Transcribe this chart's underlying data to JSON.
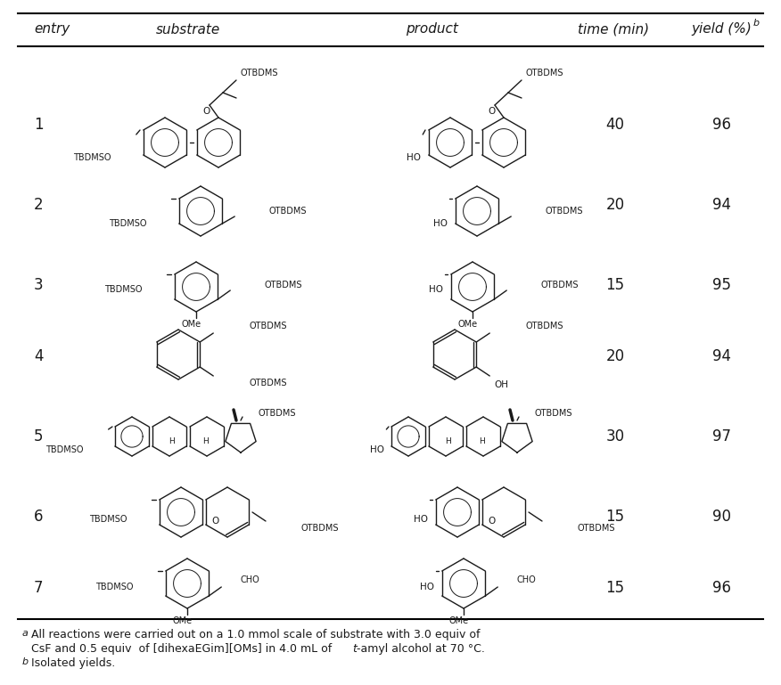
{
  "entries": [
    {
      "entry": "1",
      "time": "40",
      "yield": "96"
    },
    {
      "entry": "2",
      "time": "20",
      "yield": "94"
    },
    {
      "entry": "3",
      "time": "15",
      "yield": "95"
    },
    {
      "entry": "4",
      "time": "20",
      "yield": "94"
    },
    {
      "entry": "5",
      "time": "30",
      "yield": "97"
    },
    {
      "entry": "6",
      "time": "15",
      "yield": "90"
    },
    {
      "entry": "7",
      "time": "15",
      "yield": "96"
    }
  ],
  "text_color": "#1a1a1a",
  "struct_color": "#1a1a1a",
  "bg_color": "#ffffff",
  "fig_width": 8.76,
  "fig_height": 7.69,
  "dpi": 100
}
